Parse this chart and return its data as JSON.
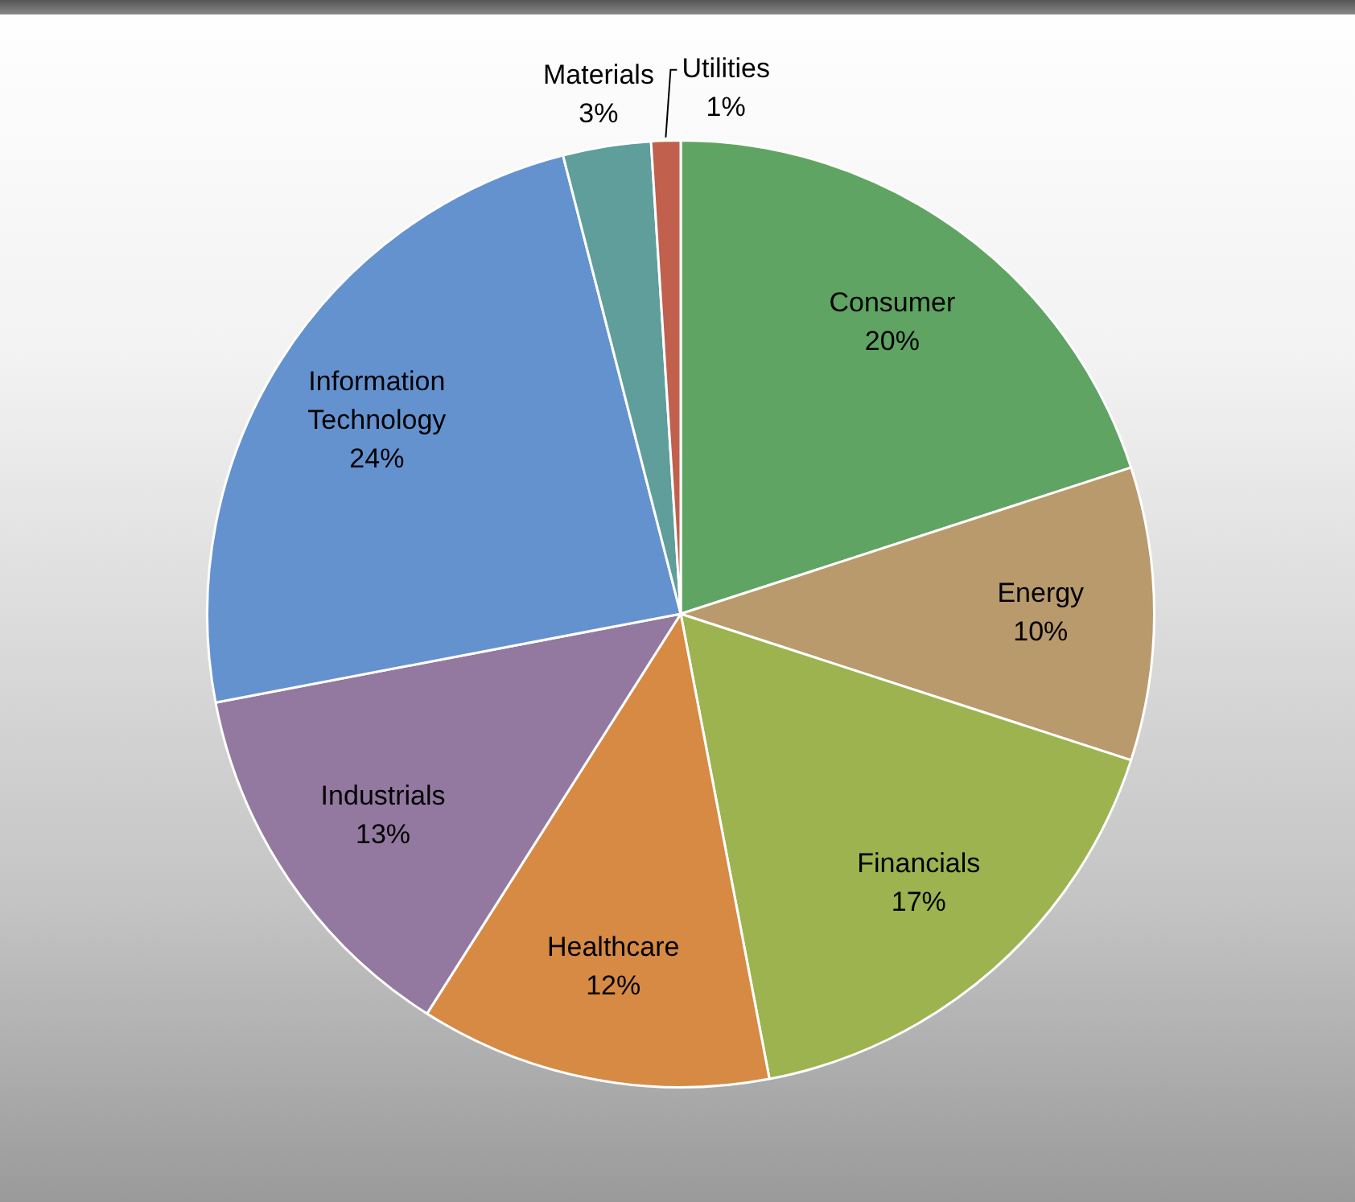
{
  "chart_data": {
    "type": "pie",
    "categories": [
      "Consumer",
      "Energy",
      "Financials",
      "Healthcare",
      "Industrials",
      "Information Technology",
      "Materials",
      "Utilities"
    ],
    "values": [
      20,
      10,
      17,
      12,
      13,
      24,
      3,
      1
    ],
    "colors": [
      "#5fa463",
      "#b89a6c",
      "#9cb350",
      "#d68a44",
      "#9378a0",
      "#6492cf",
      "#5f9e9a",
      "#c0604d"
    ],
    "value_labels": [
      "20%",
      "10%",
      "17%",
      "12%",
      "13%",
      "24%",
      "3%",
      "1%"
    ],
    "legend": false
  }
}
